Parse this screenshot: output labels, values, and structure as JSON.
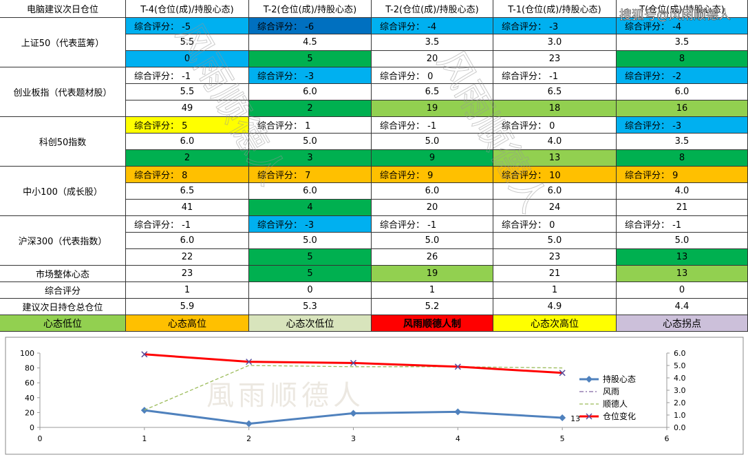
{
  "table": {
    "header": [
      "电脑建议次日仓位",
      "T-4(仓位(成)/持股心态)",
      "T-2(仓位(成)/持股心态)",
      "T-2(仓位(成)/持股心态)",
      "T-1(仓位(成)/持股心态)",
      "T(仓位(成)/持股心态)"
    ],
    "groups": [
      {
        "name": "上证50（代表蓝筹）",
        "rows": [
          [
            {
              "text": "综合评分： -5",
              "fill": "#00b0f0"
            },
            {
              "text": "综合评分： -6",
              "fill": "#0070c0"
            },
            {
              "text": "综合评分： -4",
              "fill": "#00b0f0"
            },
            {
              "text": "综合评分： -3",
              "fill": "#00b0f0"
            },
            {
              "text": "综合评分： -4",
              "fill": "#00b0f0"
            }
          ],
          [
            {
              "text": "5.5"
            },
            {
              "text": "4.5"
            },
            {
              "text": "3.5"
            },
            {
              "text": "3.0"
            },
            {
              "text": "3.5"
            }
          ],
          [
            {
              "text": "0",
              "fill": "#00b0f0"
            },
            {
              "text": "5",
              "fill": "#00b050"
            },
            {
              "text": "20"
            },
            {
              "text": "23"
            },
            {
              "text": "8",
              "fill": "#00b050"
            }
          ]
        ]
      },
      {
        "name": "创业板指（代表题材股）",
        "rows": [
          [
            {
              "text": "综合评分： -1"
            },
            {
              "text": "综合评分： -3",
              "fill": "#00b0f0"
            },
            {
              "text": "综合评分： 0"
            },
            {
              "text": "综合评分： -1"
            },
            {
              "text": "综合评分： -2",
              "fill": "#00b0f0"
            }
          ],
          [
            {
              "text": "5.5"
            },
            {
              "text": "6.0"
            },
            {
              "text": "6.5"
            },
            {
              "text": "6.5"
            },
            {
              "text": "6.0"
            }
          ],
          [
            {
              "text": "49"
            },
            {
              "text": "2",
              "fill": "#00b050"
            },
            {
              "text": "19",
              "fill": "#92d050"
            },
            {
              "text": "18",
              "fill": "#92d050"
            },
            {
              "text": "16",
              "fill": "#92d050"
            }
          ]
        ]
      },
      {
        "name": "科创50指数",
        "rows": [
          [
            {
              "text": "综合评分： 5",
              "fill": "#ffff00"
            },
            {
              "text": "综合评分： 1"
            },
            {
              "text": "综合评分： -1"
            },
            {
              "text": "综合评分： 0"
            },
            {
              "text": "综合评分： -3",
              "fill": "#00b0f0"
            }
          ],
          [
            {
              "text": "6.0"
            },
            {
              "text": "5.0"
            },
            {
              "text": "5.0"
            },
            {
              "text": "4.0"
            },
            {
              "text": "3.5"
            }
          ],
          [
            {
              "text": "2",
              "fill": "#00b050"
            },
            {
              "text": "3",
              "fill": "#00b050"
            },
            {
              "text": "9",
              "fill": "#00b050"
            },
            {
              "text": "13",
              "fill": "#92d050"
            },
            {
              "text": "8",
              "fill": "#00b050"
            }
          ]
        ]
      },
      {
        "name": "中小100（成长股）",
        "rows": [
          [
            {
              "text": "综合评分： 8",
              "fill": "#ffc000"
            },
            {
              "text": "综合评分： 7",
              "fill": "#ffc000"
            },
            {
              "text": "综合评分： 9",
              "fill": "#ffc000"
            },
            {
              "text": "综合评分： 10",
              "fill": "#ffc000"
            },
            {
              "text": "综合评分： 9",
              "fill": "#ffc000"
            }
          ],
          [
            {
              "text": "6.5"
            },
            {
              "text": "6.0"
            },
            {
              "text": "6.0"
            },
            {
              "text": "6.0"
            },
            {
              "text": "4.0"
            }
          ],
          [
            {
              "text": "41"
            },
            {
              "text": "4",
              "fill": "#00b050"
            },
            {
              "text": "20"
            },
            {
              "text": "24"
            },
            {
              "text": "21"
            }
          ]
        ]
      },
      {
        "name": "沪深300（代表指数）",
        "rows": [
          [
            {
              "text": "综合评分： -1"
            },
            {
              "text": "综合评分： -3",
              "fill": "#00b0f0"
            },
            {
              "text": "综合评分： -1"
            },
            {
              "text": "综合评分： 0"
            },
            {
              "text": "综合评分： -1"
            }
          ],
          [
            {
              "text": "6.0"
            },
            {
              "text": "5.0"
            },
            {
              "text": "5.0"
            },
            {
              "text": "5.0"
            },
            {
              "text": "5.0"
            }
          ],
          [
            {
              "text": "22"
            },
            {
              "text": "5",
              "fill": "#00b050"
            },
            {
              "text": "26"
            },
            {
              "text": "23"
            },
            {
              "text": "13",
              "fill": "#00b050"
            }
          ]
        ]
      }
    ],
    "summary": [
      {
        "name": "市场整体心态",
        "cells": [
          {
            "text": "23"
          },
          {
            "text": "5",
            "fill": "#00b050"
          },
          {
            "text": "19",
            "fill": "#92d050"
          },
          {
            "text": "21"
          },
          {
            "text": "13",
            "fill": "#92d050"
          }
        ]
      },
      {
        "name": "综合评分",
        "cells": [
          {
            "text": "1"
          },
          {
            "text": "0"
          },
          {
            "text": "1"
          },
          {
            "text": "1"
          },
          {
            "text": "0"
          }
        ]
      },
      {
        "name": "建议次日持仓总仓位",
        "cells": [
          {
            "text": "5.9"
          },
          {
            "text": "5.3"
          },
          {
            "text": "5.2"
          },
          {
            "text": "4.9"
          },
          {
            "text": "4.4"
          }
        ]
      }
    ],
    "legend": [
      {
        "text": "心态低位",
        "fill": "#92d050"
      },
      {
        "text": "心态高位",
        "fill": "#ffc000"
      },
      {
        "text": "心态次低位",
        "fill": "#d8e4bc"
      },
      {
        "text": "风雨顺德人制",
        "fill": "#ff0000",
        "bold": true
      },
      {
        "text": "心态次高位",
        "fill": "#ffff00"
      },
      {
        "text": "心态拐点",
        "fill": "#ccc0da"
      }
    ]
  },
  "chart_data": {
    "type": "line",
    "x": [
      1,
      2,
      3,
      4,
      5
    ],
    "xlim": [
      0,
      6
    ],
    "xticks": [
      0,
      1,
      2,
      3,
      4,
      5,
      6
    ],
    "ylim": [
      0,
      100
    ],
    "yticks": [
      0,
      20,
      40,
      60,
      80,
      100
    ],
    "y2lim": [
      0,
      6
    ],
    "y2ticks": [
      {
        "value": 0,
        "label": "0.0"
      },
      {
        "value": 1,
        "label": "1.0"
      },
      {
        "value": 2,
        "label": "2.0"
      },
      {
        "value": 3,
        "label": "3.0"
      },
      {
        "value": 4,
        "label": "4.0"
      },
      {
        "value": 5,
        "label": "5.0"
      },
      {
        "value": 6,
        "label": "6.0"
      }
    ],
    "series": [
      {
        "name": "持股心态",
        "color": "#4f81bd",
        "marker": "diamond",
        "values": [
          23,
          5,
          19,
          21,
          13
        ],
        "label_last": true
      },
      {
        "name": "风雨",
        "color": "#8064a2",
        "dash": "6 3 2 3",
        "values": [
          null,
          null,
          null,
          null,
          null
        ]
      },
      {
        "name": "顺德人",
        "color": "#9bbb59",
        "dash": "5 3",
        "axis": "y2",
        "values": [
          1.4,
          5.0,
          4.9,
          4.9,
          4.8
        ]
      },
      {
        "name": "仓位变化",
        "color": "#ff0000",
        "marker": "x",
        "axis": "y2",
        "values": [
          5.9,
          5.3,
          5.2,
          4.9,
          4.4
        ]
      }
    ],
    "legend": "right"
  },
  "watermarks": {
    "corner": "搜狐号@风雨顺德人",
    "overlay": "风雨顺德人",
    "chart": "風雨顺德人"
  }
}
